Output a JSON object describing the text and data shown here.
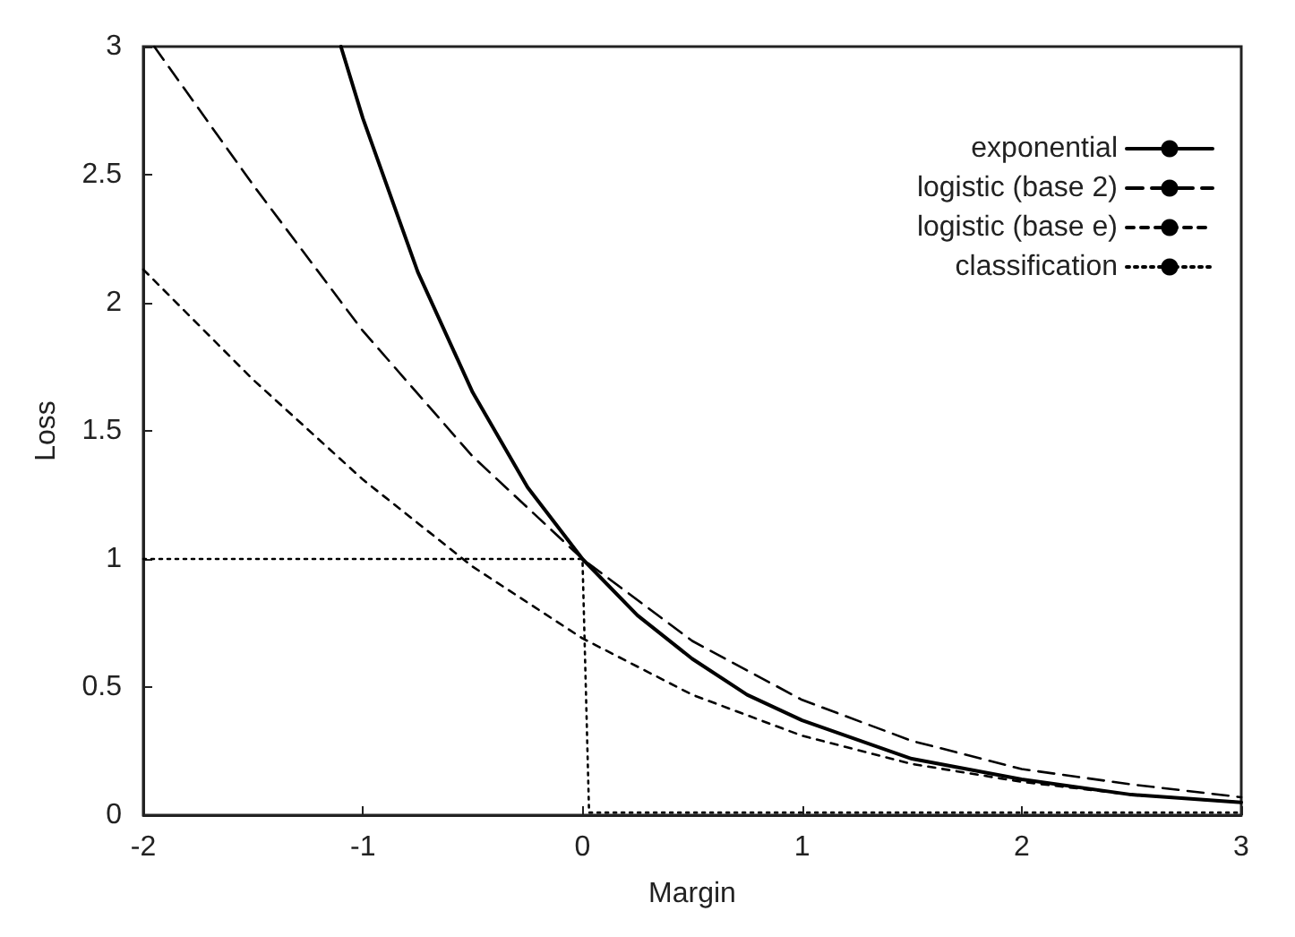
{
  "chart_data": {
    "type": "line",
    "xlabel": "Margin",
    "ylabel": "Loss",
    "xlim": [
      -2,
      3
    ],
    "xticks": [
      -2,
      -1,
      0,
      1,
      2,
      3
    ],
    "ylim": [
      0,
      3
    ],
    "yticks": [
      0,
      0.5,
      1,
      1.5,
      2,
      2.5,
      3
    ],
    "grid": false,
    "legend": "top right",
    "marker": "none",
    "series": [
      {
        "name": "exponential",
        "color": "#000000",
        "line_style": "solid",
        "x": [
          -1.1,
          -1,
          -0.75,
          -0.5,
          -0.25,
          0,
          0.25,
          0.5,
          0.75,
          1,
          1.5,
          2,
          2.5,
          3
        ],
        "values": [
          3.0,
          2.72,
          2.12,
          1.65,
          1.28,
          1.0,
          0.78,
          0.61,
          0.47,
          0.37,
          0.22,
          0.14,
          0.08,
          0.05
        ]
      },
      {
        "name": "logistic (base 2)",
        "color": "#000000",
        "line_style": "dashed",
        "x": [
          -1.95,
          -1.5,
          -1,
          -0.5,
          0,
          0.5,
          1,
          1.5,
          2,
          2.5,
          3
        ],
        "values": [
          3.0,
          2.46,
          1.89,
          1.4,
          1.0,
          0.68,
          0.45,
          0.29,
          0.18,
          0.12,
          0.07
        ]
      },
      {
        "name": "logistic (base e)",
        "color": "#000000",
        "line_style": "dashed",
        "x": [
          -2,
          -1.5,
          -1,
          -0.5,
          0,
          0.5,
          1,
          1.5,
          2,
          2.5,
          3
        ],
        "values": [
          2.13,
          1.7,
          1.31,
          0.97,
          0.69,
          0.47,
          0.31,
          0.2,
          0.13,
          0.08,
          0.05
        ]
      },
      {
        "name": "classification",
        "color": "#000000",
        "line_style": "dotted",
        "x": [
          -2,
          0,
          0.03,
          3
        ],
        "values": [
          1,
          1,
          0.01,
          0.01
        ]
      }
    ]
  }
}
